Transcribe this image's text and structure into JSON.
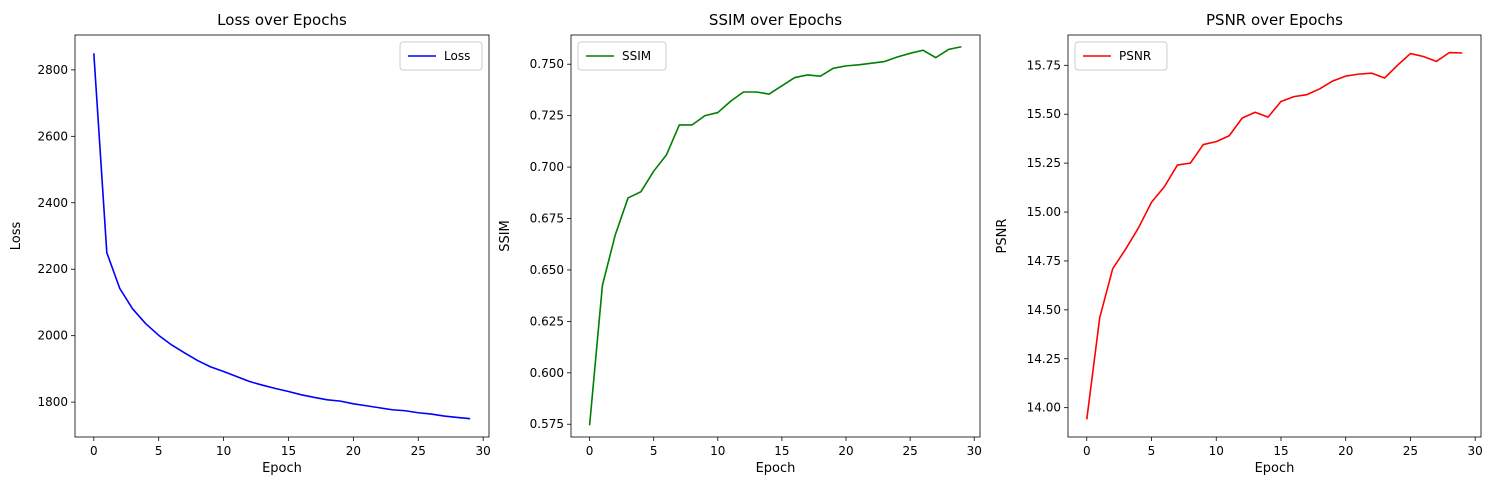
{
  "chart_data": [
    {
      "type": "line",
      "title": "Loss over Epochs",
      "xlabel": "Epoch",
      "ylabel": "Loss",
      "xlim": [
        -1.45,
        30.45
      ],
      "ylim": [
        1695,
        2905
      ],
      "xticks": [
        0,
        5,
        10,
        15,
        20,
        25,
        30
      ],
      "yticks": [
        1800,
        2000,
        2200,
        2400,
        2600,
        2800
      ],
      "ytick_labels": [
        "1800",
        "2000",
        "2200",
        "2400",
        "2600",
        "2800"
      ],
      "grid": false,
      "legend_position": "upper right",
      "x": [
        0,
        1,
        2,
        3,
        4,
        5,
        6,
        7,
        8,
        9,
        10,
        11,
        12,
        13,
        14,
        15,
        16,
        17,
        18,
        19,
        20,
        21,
        22,
        23,
        24,
        25,
        26,
        27,
        28,
        29
      ],
      "series": [
        {
          "name": "Loss",
          "color": "#0000ff",
          "values": [
            2850,
            2250,
            2142,
            2080,
            2036,
            2001,
            1972,
            1948,
            1925,
            1906,
            1892,
            1877,
            1862,
            1851,
            1841,
            1832,
            1822,
            1814,
            1807,
            1803,
            1795,
            1789,
            1783,
            1777,
            1774,
            1768,
            1764,
            1758,
            1754,
            1750
          ]
        }
      ]
    },
    {
      "type": "line",
      "title": "SSIM over Epochs",
      "xlabel": "Epoch",
      "ylabel": "SSIM",
      "xlim": [
        -1.45,
        30.45
      ],
      "ylim": [
        0.5688,
        0.7642
      ],
      "xticks": [
        0,
        5,
        10,
        15,
        20,
        25,
        30
      ],
      "yticks": [
        0.575,
        0.6,
        0.625,
        0.65,
        0.675,
        0.7,
        0.725,
        0.75
      ],
      "ytick_labels": [
        "0.575",
        "0.600",
        "0.625",
        "0.650",
        "0.675",
        "0.700",
        "0.725",
        "0.750"
      ],
      "grid": false,
      "legend_position": "upper left",
      "x": [
        0,
        1,
        2,
        3,
        4,
        5,
        6,
        7,
        8,
        9,
        10,
        11,
        12,
        13,
        14,
        15,
        16,
        17,
        18,
        19,
        20,
        21,
        22,
        23,
        24,
        25,
        26,
        27,
        28,
        29
      ],
      "series": [
        {
          "name": "SSIM",
          "color": "#008000",
          "values": [
            0.5745,
            0.6425,
            0.667,
            0.685,
            0.688,
            0.698,
            0.706,
            0.7205,
            0.7205,
            0.725,
            0.7265,
            0.732,
            0.7365,
            0.7365,
            0.7355,
            0.7395,
            0.7435,
            0.7448,
            0.7442,
            0.748,
            0.7492,
            0.7497,
            0.7505,
            0.7513,
            0.7535,
            0.7553,
            0.7568,
            0.7532,
            0.7572,
            0.7585
          ]
        }
      ]
    },
    {
      "type": "line",
      "title": "PSNR over Epochs",
      "xlabel": "Epoch",
      "ylabel": "PSNR",
      "xlim": [
        -1.45,
        30.45
      ],
      "ylim": [
        13.85,
        15.905
      ],
      "xticks": [
        0,
        5,
        10,
        15,
        20,
        25,
        30
      ],
      "yticks": [
        14.0,
        14.25,
        14.5,
        14.75,
        15.0,
        15.25,
        15.5,
        15.75
      ],
      "ytick_labels": [
        "14.00",
        "14.25",
        "14.50",
        "14.75",
        "15.00",
        "15.25",
        "15.50",
        "15.75"
      ],
      "grid": false,
      "legend_position": "upper left",
      "x": [
        0,
        1,
        2,
        3,
        4,
        5,
        6,
        7,
        8,
        9,
        10,
        11,
        12,
        13,
        14,
        15,
        16,
        17,
        18,
        19,
        20,
        21,
        22,
        23,
        24,
        25,
        26,
        27,
        28,
        29
      ],
      "series": [
        {
          "name": "PSNR",
          "color": "#ff0000",
          "values": [
            13.94,
            14.46,
            14.71,
            14.81,
            14.92,
            15.05,
            15.13,
            15.24,
            15.25,
            15.345,
            15.36,
            15.39,
            15.48,
            15.51,
            15.485,
            15.565,
            15.59,
            15.6,
            15.63,
            15.67,
            15.695,
            15.705,
            15.71,
            15.685,
            15.75,
            15.81,
            15.795,
            15.77,
            15.815,
            15.813
          ]
        }
      ]
    }
  ]
}
